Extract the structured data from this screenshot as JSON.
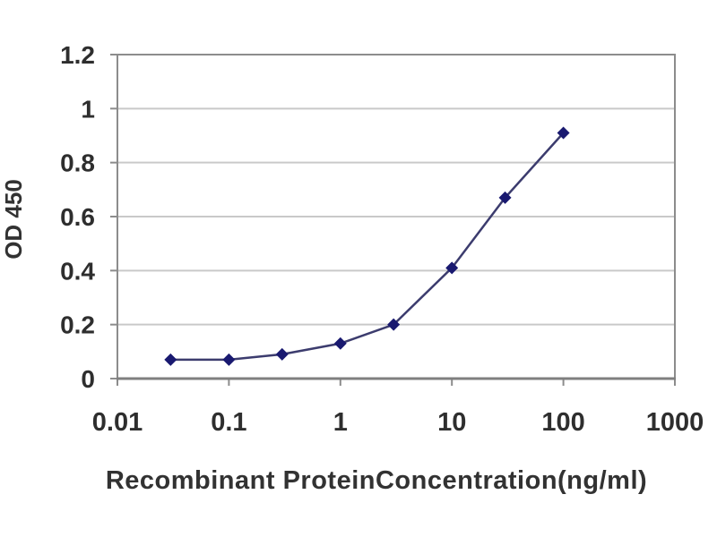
{
  "chart_data": {
    "type": "line",
    "xlabel": "Recombinant ProteinConcentration(ng/ml)",
    "ylabel": "OD 450",
    "x_scale": "log",
    "xlim": [
      0.01,
      1000
    ],
    "ylim": [
      0,
      1.2
    ],
    "x_tick_labels": [
      "0.01",
      "0.1",
      "1",
      "10",
      "100",
      "1000"
    ],
    "y_tick_labels": [
      "0",
      "0.2",
      "0.4",
      "0.6",
      "0.8",
      "1",
      "1.2"
    ],
    "grid": "horizontal",
    "legend": "none",
    "series": [
      {
        "marker": "diamond",
        "x": [
          0.03,
          0.1,
          0.3,
          1,
          3,
          10,
          30,
          100
        ],
        "y": [
          0.07,
          0.07,
          0.09,
          0.13,
          0.2,
          0.41,
          0.67,
          0.91
        ]
      }
    ],
    "colors": {
      "line": "#3c3c6e",
      "marker": "#191970",
      "grid": "#c9c9c9",
      "axis_frame": "#8c8c8c",
      "axis_bottom": "#7f7f7f",
      "plot_background": "#ffffff",
      "page_background": "#ffffff",
      "text": "#2e2e2e"
    }
  }
}
